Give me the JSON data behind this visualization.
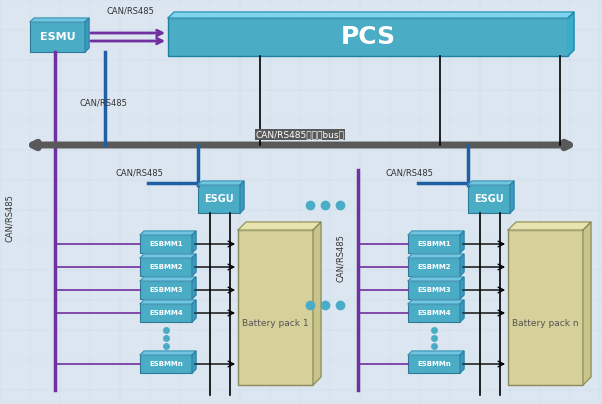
{
  "fig_width": 6.02,
  "fig_height": 4.04,
  "dpi": 100,
  "bg_color": "#dce6f0",
  "pcs_color": "#4bacc6",
  "pcs_text": "PCS",
  "esmu_color": "#4bacc6",
  "esmu_text": "ESMU",
  "esgu_color": "#4bacc6",
  "esgu_text": "ESGU",
  "esbmm_color": "#4bacc6",
  "battery_color": "#d6d09a",
  "bus_color": "#595959",
  "can_line_color": "#7030a0",
  "blue_line_color": "#1f5fa6",
  "black_line_color": "#000000",
  "bus_label": "CAN/RS485总线（bus）",
  "can_rs485": "CAN/RS485"
}
